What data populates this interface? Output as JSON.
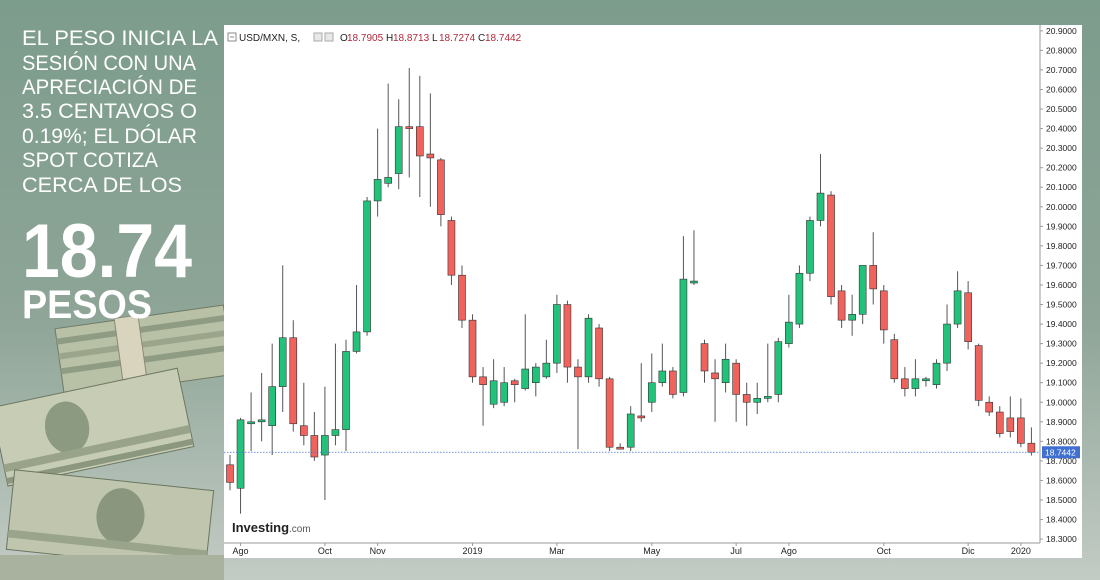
{
  "headline": [
    "EL PESO INICIA LA",
    "SESIÓN CON UNA",
    "APRECIACIÓN DE",
    "3.5 CENTAVOS O",
    "0.19%; EL DÓLAR",
    "SPOT COTIZA",
    "CERCA DE LOS"
  ],
  "price": "18.74",
  "unit": "PESOS",
  "chart_data": {
    "type": "candlestick",
    "title": "USD/MXN, S,",
    "ohlc_header": [
      {
        "label": "O",
        "value": 18.7905
      },
      {
        "label": "H",
        "value": 18.8713
      },
      {
        "label": "L",
        "value": 18.7274
      },
      {
        "label": "C",
        "value": 18.7442
      }
    ],
    "logo": [
      "Investing",
      ".com"
    ],
    "last_price": 18.7442,
    "up_color": "#22c27a",
    "down_color": "#f0625c",
    "last_color": "#3f6fd0",
    "grid": false,
    "categories": [
      null,
      "Ago",
      null,
      null,
      null,
      null,
      null,
      null,
      null,
      "Oct",
      null,
      null,
      null,
      null,
      "Nov",
      null,
      null,
      null,
      null,
      null,
      null,
      null,
      null,
      "2019",
      null,
      null,
      null,
      null,
      null,
      null,
      null,
      "Mar",
      null,
      null,
      null,
      null,
      null,
      null,
      null,
      null,
      "May",
      null,
      null,
      null,
      null,
      null,
      null,
      null,
      "Jul",
      null,
      null,
      null,
      null,
      "Ago",
      null,
      null,
      null,
      null,
      null,
      null,
      null,
      null,
      "Oct",
      null,
      null,
      null,
      null,
      null,
      null,
      null,
      "Dic",
      null,
      null,
      null,
      null,
      "2020",
      null
    ],
    "open": [
      18.68,
      18.56,
      18.89,
      18.9,
      18.88,
      19.08,
      19.33,
      18.88,
      18.83,
      18.73,
      18.83,
      18.86,
      19.26,
      19.36,
      20.03,
      20.12,
      20.17,
      20.41,
      20.41,
      20.27,
      20.24,
      19.93,
      19.65,
      19.42,
      19.13,
      18.99,
      19.0,
      19.11,
      19.07,
      19.1,
      19.13,
      19.2,
      19.5,
      19.18,
      19.13,
      19.38,
      19.12,
      18.77,
      18.77,
      18.93,
      19.0,
      19.1,
      19.16,
      19.05,
      19.61,
      19.3,
      19.15,
      19.1,
      19.2,
      19.04,
      19.0,
      19.02,
      19.04,
      19.3,
      19.4,
      19.66,
      19.93,
      20.06,
      19.57,
      19.42,
      19.45,
      19.7,
      19.57,
      19.32,
      19.12,
      19.07,
      19.11,
      19.09,
      19.2,
      19.4,
      19.56,
      19.29,
      19.0,
      18.95,
      18.92,
      18.92,
      18.7905
    ],
    "high": [
      18.73,
      18.92,
      19.05,
      19.15,
      19.3,
      19.7,
      19.42,
      19.1,
      18.95,
      19.08,
      19.3,
      19.32,
      19.6,
      20.05,
      20.4,
      20.63,
      20.55,
      20.71,
      20.67,
      20.58,
      20.25,
      19.95,
      19.7,
      19.45,
      19.18,
      19.22,
      19.18,
      19.12,
      19.45,
      19.2,
      19.32,
      19.55,
      19.52,
      19.22,
      19.45,
      19.4,
      19.13,
      18.79,
      18.98,
      19.2,
      19.25,
      19.3,
      19.18,
      19.85,
      19.88,
      19.32,
      19.22,
      19.3,
      19.22,
      19.1,
      19.1,
      19.3,
      19.33,
      19.55,
      19.7,
      19.95,
      20.27,
      20.08,
      19.6,
      19.55,
      19.7,
      19.87,
      19.6,
      19.35,
      19.18,
      19.22,
      19.13,
      19.22,
      19.5,
      19.67,
      19.62,
      19.3,
      19.03,
      18.98,
      19.03,
      19.02,
      18.8713
    ],
    "low": [
      18.55,
      18.43,
      18.75,
      18.8,
      18.73,
      18.95,
      18.85,
      18.78,
      18.7,
      18.5,
      18.78,
      18.75,
      19.25,
      19.34,
      19.95,
      20.1,
      20.09,
      20.15,
      20.05,
      20.0,
      19.9,
      19.6,
      19.38,
      19.1,
      18.88,
      18.97,
      18.98,
      19.0,
      19.06,
      19.03,
      19.12,
      19.15,
      19.1,
      18.76,
      19.1,
      19.08,
      18.75,
      18.76,
      18.75,
      18.9,
      18.95,
      19.08,
      19.02,
      19.03,
      19.6,
      19.1,
      18.9,
      19.05,
      18.9,
      18.88,
      18.94,
      19.0,
      19.0,
      19.28,
      19.38,
      19.62,
      19.9,
      19.5,
      19.38,
      19.34,
      19.4,
      19.5,
      19.3,
      19.1,
      19.03,
      19.03,
      19.08,
      19.07,
      19.16,
      19.38,
      19.27,
      18.98,
      18.93,
      18.82,
      18.82,
      18.77,
      18.7274
    ],
    "close": [
      18.59,
      18.91,
      18.9,
      18.91,
      19.08,
      19.33,
      18.89,
      18.83,
      18.72,
      18.83,
      18.86,
      19.26,
      19.36,
      20.03,
      20.14,
      20.15,
      20.41,
      20.4,
      20.26,
      20.25,
      19.96,
      19.65,
      19.42,
      19.13,
      19.09,
      19.11,
      19.1,
      19.09,
      19.17,
      19.18,
      19.2,
      19.5,
      19.18,
      19.13,
      19.43,
      19.12,
      18.77,
      18.76,
      18.94,
      18.92,
      19.1,
      19.16,
      19.04,
      19.63,
      19.62,
      19.16,
      19.12,
      19.22,
      19.04,
      19.0,
      19.02,
      19.03,
      19.31,
      19.41,
      19.66,
      19.93,
      20.07,
      19.54,
      19.42,
      19.45,
      19.7,
      19.58,
      19.37,
      19.12,
      19.07,
      19.12,
      19.12,
      19.2,
      19.4,
      19.57,
      19.31,
      19.01,
      18.95,
      18.84,
      18.85,
      18.79,
      18.7442
    ],
    "ylim": [
      18.28,
      20.93
    ],
    "yticks": [
      {
        "value": 18.3,
        "label": "18.3000"
      },
      {
        "value": 18.4,
        "label": "18.4000"
      },
      {
        "value": 18.5,
        "label": "18.5000"
      },
      {
        "value": 18.6,
        "label": "18.6000"
      },
      {
        "value": 18.7,
        "label": "18.7000"
      },
      {
        "value": 18.8,
        "label": "18.8000"
      },
      {
        "value": 18.9,
        "label": "18.9000"
      },
      {
        "value": 19.0,
        "label": "19.0000"
      },
      {
        "value": 19.1,
        "label": "19.1000"
      },
      {
        "value": 19.2,
        "label": "19.2000"
      },
      {
        "value": 19.3,
        "label": "19.3000"
      },
      {
        "value": 19.4,
        "label": "19.4000"
      },
      {
        "value": 19.5,
        "label": "19.5000"
      },
      {
        "value": 19.6,
        "label": "19.6000"
      },
      {
        "value": 19.7,
        "label": "19.7000"
      },
      {
        "value": 19.8,
        "label": "19.8000"
      },
      {
        "value": 19.9,
        "label": "19.9000"
      },
      {
        "value": 20.0,
        "label": "20.0000"
      },
      {
        "value": 20.1,
        "label": "20.1000"
      },
      {
        "value": 20.2,
        "label": "20.2000"
      },
      {
        "value": 20.3,
        "label": "20.3000"
      },
      {
        "value": 20.4,
        "label": "20.4000"
      },
      {
        "value": 20.5,
        "label": "20.5000"
      },
      {
        "value": 20.6,
        "label": "20.6000"
      },
      {
        "value": 20.7,
        "label": "20.7000"
      },
      {
        "value": 20.8,
        "label": "20.8000"
      },
      {
        "value": 20.9,
        "label": "20.9000"
      }
    ]
  }
}
